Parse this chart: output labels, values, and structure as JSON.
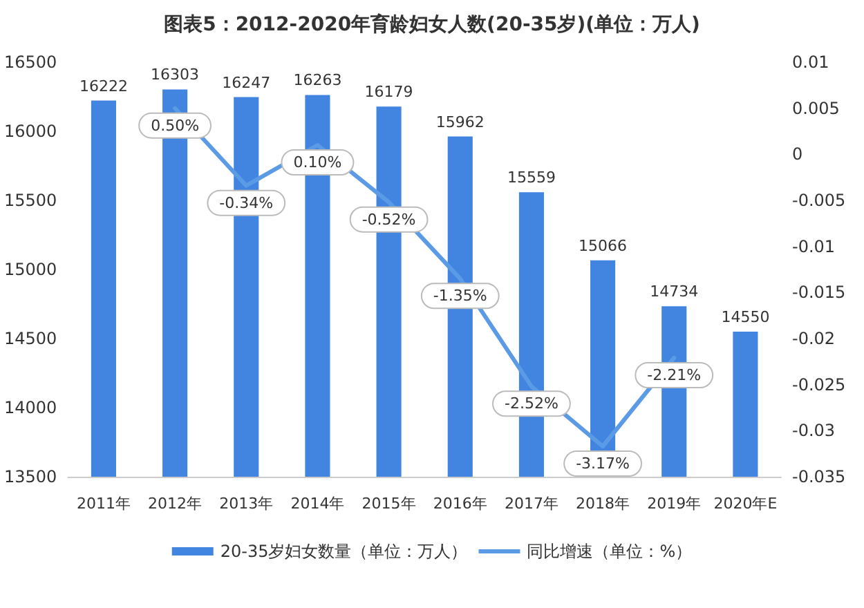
{
  "chart_data": {
    "type": "bar",
    "title": "图表5：2012-2020年育龄妇女人数(20-35岁)(单位：万人)",
    "categories": [
      "2011年",
      "2012年",
      "2013年",
      "2014年",
      "2015年",
      "2016年",
      "2017年",
      "2018年",
      "2019年",
      "2020年E"
    ],
    "series": [
      {
        "name": "20-35岁妇女数量（单位：万人）",
        "color": "#4285e0",
        "values": [
          16222,
          16303,
          16247,
          16263,
          16179,
          15962,
          15559,
          15066,
          14734,
          14550
        ],
        "data_labels": true
      },
      {
        "name": "同比增速（单位：%）",
        "type": "line",
        "axis": "y2",
        "color": "#5b9be6",
        "values": [
          null,
          0.005,
          -0.0034,
          0.001,
          -0.0052,
          -0.0135,
          -0.0252,
          -0.0317,
          -0.0221,
          null
        ],
        "value_labels": [
          null,
          "0.50%",
          "-0.34%",
          "0.10%",
          "-0.52%",
          "-1.35%",
          "-2.52%",
          "-3.17%",
          "-2.21%",
          null
        ]
      }
    ],
    "ylim": [
      13500,
      16500
    ],
    "yticks": [
      13500,
      14000,
      14500,
      15000,
      15500,
      16000,
      16500
    ],
    "y2lim": [
      -0.035,
      0.01
    ],
    "y2ticks": [
      -0.035,
      -0.03,
      -0.025,
      -0.02,
      -0.015,
      -0.01,
      -0.005,
      0,
      0.005,
      0.01
    ],
    "grid": false,
    "legend": "bottom",
    "marker": "none",
    "line_style": "solid"
  }
}
